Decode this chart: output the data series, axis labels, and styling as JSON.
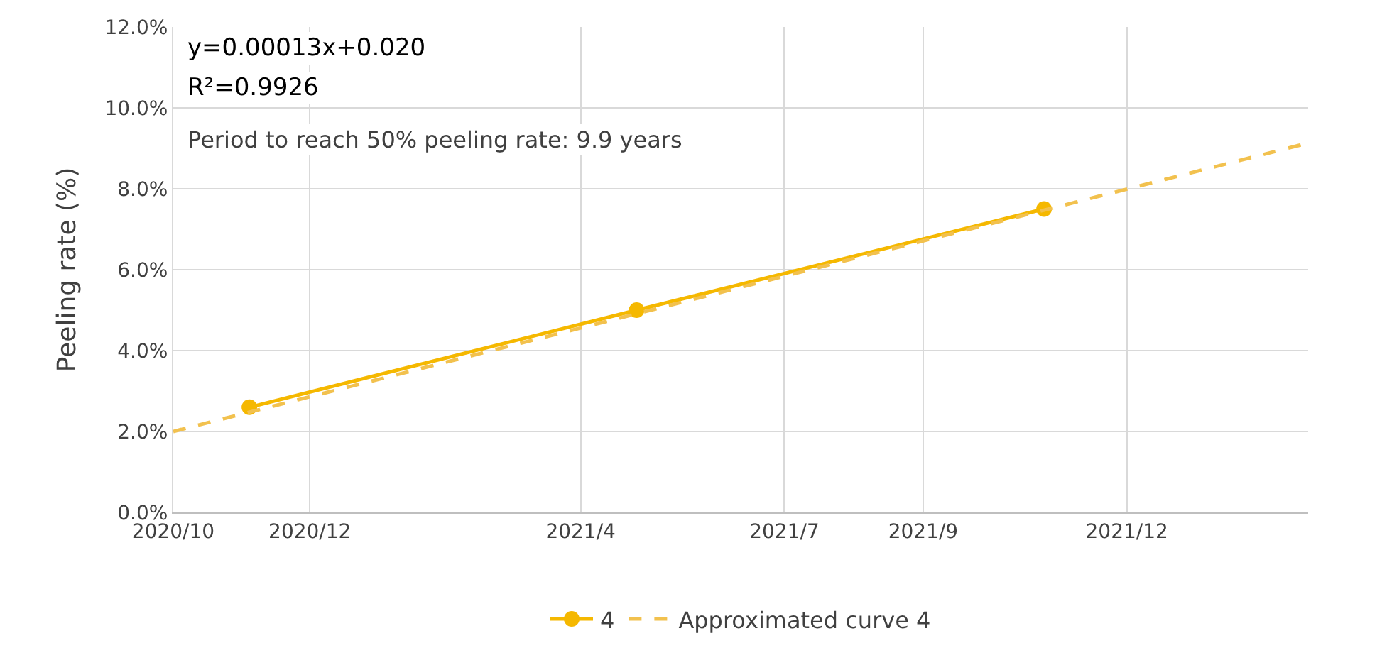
{
  "chart_data": {
    "type": "line",
    "ylabel": "Peeling rate (%)",
    "xlim": [
      "2020-10-01",
      "2022-02-20"
    ],
    "xticks": [
      {
        "value": "2020-10-01",
        "label": "2020/10"
      },
      {
        "value": "2020-12-01",
        "label": "2020/12"
      },
      {
        "value": "2021-04-01",
        "label": "2021/4"
      },
      {
        "value": "2021-07-01",
        "label": "2021/7"
      },
      {
        "value": "2021-09-01",
        "label": "2021/9"
      },
      {
        "value": "2021-12-01",
        "label": "2021/12"
      }
    ],
    "ylim": [
      0,
      12
    ],
    "yticks": [
      {
        "value": 0,
        "label": "0.0%"
      },
      {
        "value": 2,
        "label": "2.0%"
      },
      {
        "value": 4,
        "label": "4.0%"
      },
      {
        "value": 6,
        "label": "6.0%"
      },
      {
        "value": 8,
        "label": "8.0%"
      },
      {
        "value": 10,
        "label": "10.0%"
      },
      {
        "value": 12,
        "label": "12.0%"
      }
    ],
    "grid": true,
    "legend": "bottom",
    "series": [
      {
        "name": "4",
        "color": "#f5b800",
        "x": [
          "2020-11-04",
          "2021-04-26",
          "2021-10-25"
        ],
        "values": [
          2.6,
          5.0,
          7.5
        ],
        "marker": "circle",
        "line_style": "solid"
      },
      {
        "name": "Approximated curve 4",
        "color": "#f2c14e",
        "x": [
          "2020-10-01",
          "2022-02-20"
        ],
        "values": [
          2.0,
          9.13
        ],
        "marker": "none",
        "line_style": "dashed"
      }
    ],
    "annotations": [
      "y=0.00013x+0.020",
      "R²=0.9926",
      "Period to reach 50% peeling rate: 9.9 years"
    ]
  }
}
